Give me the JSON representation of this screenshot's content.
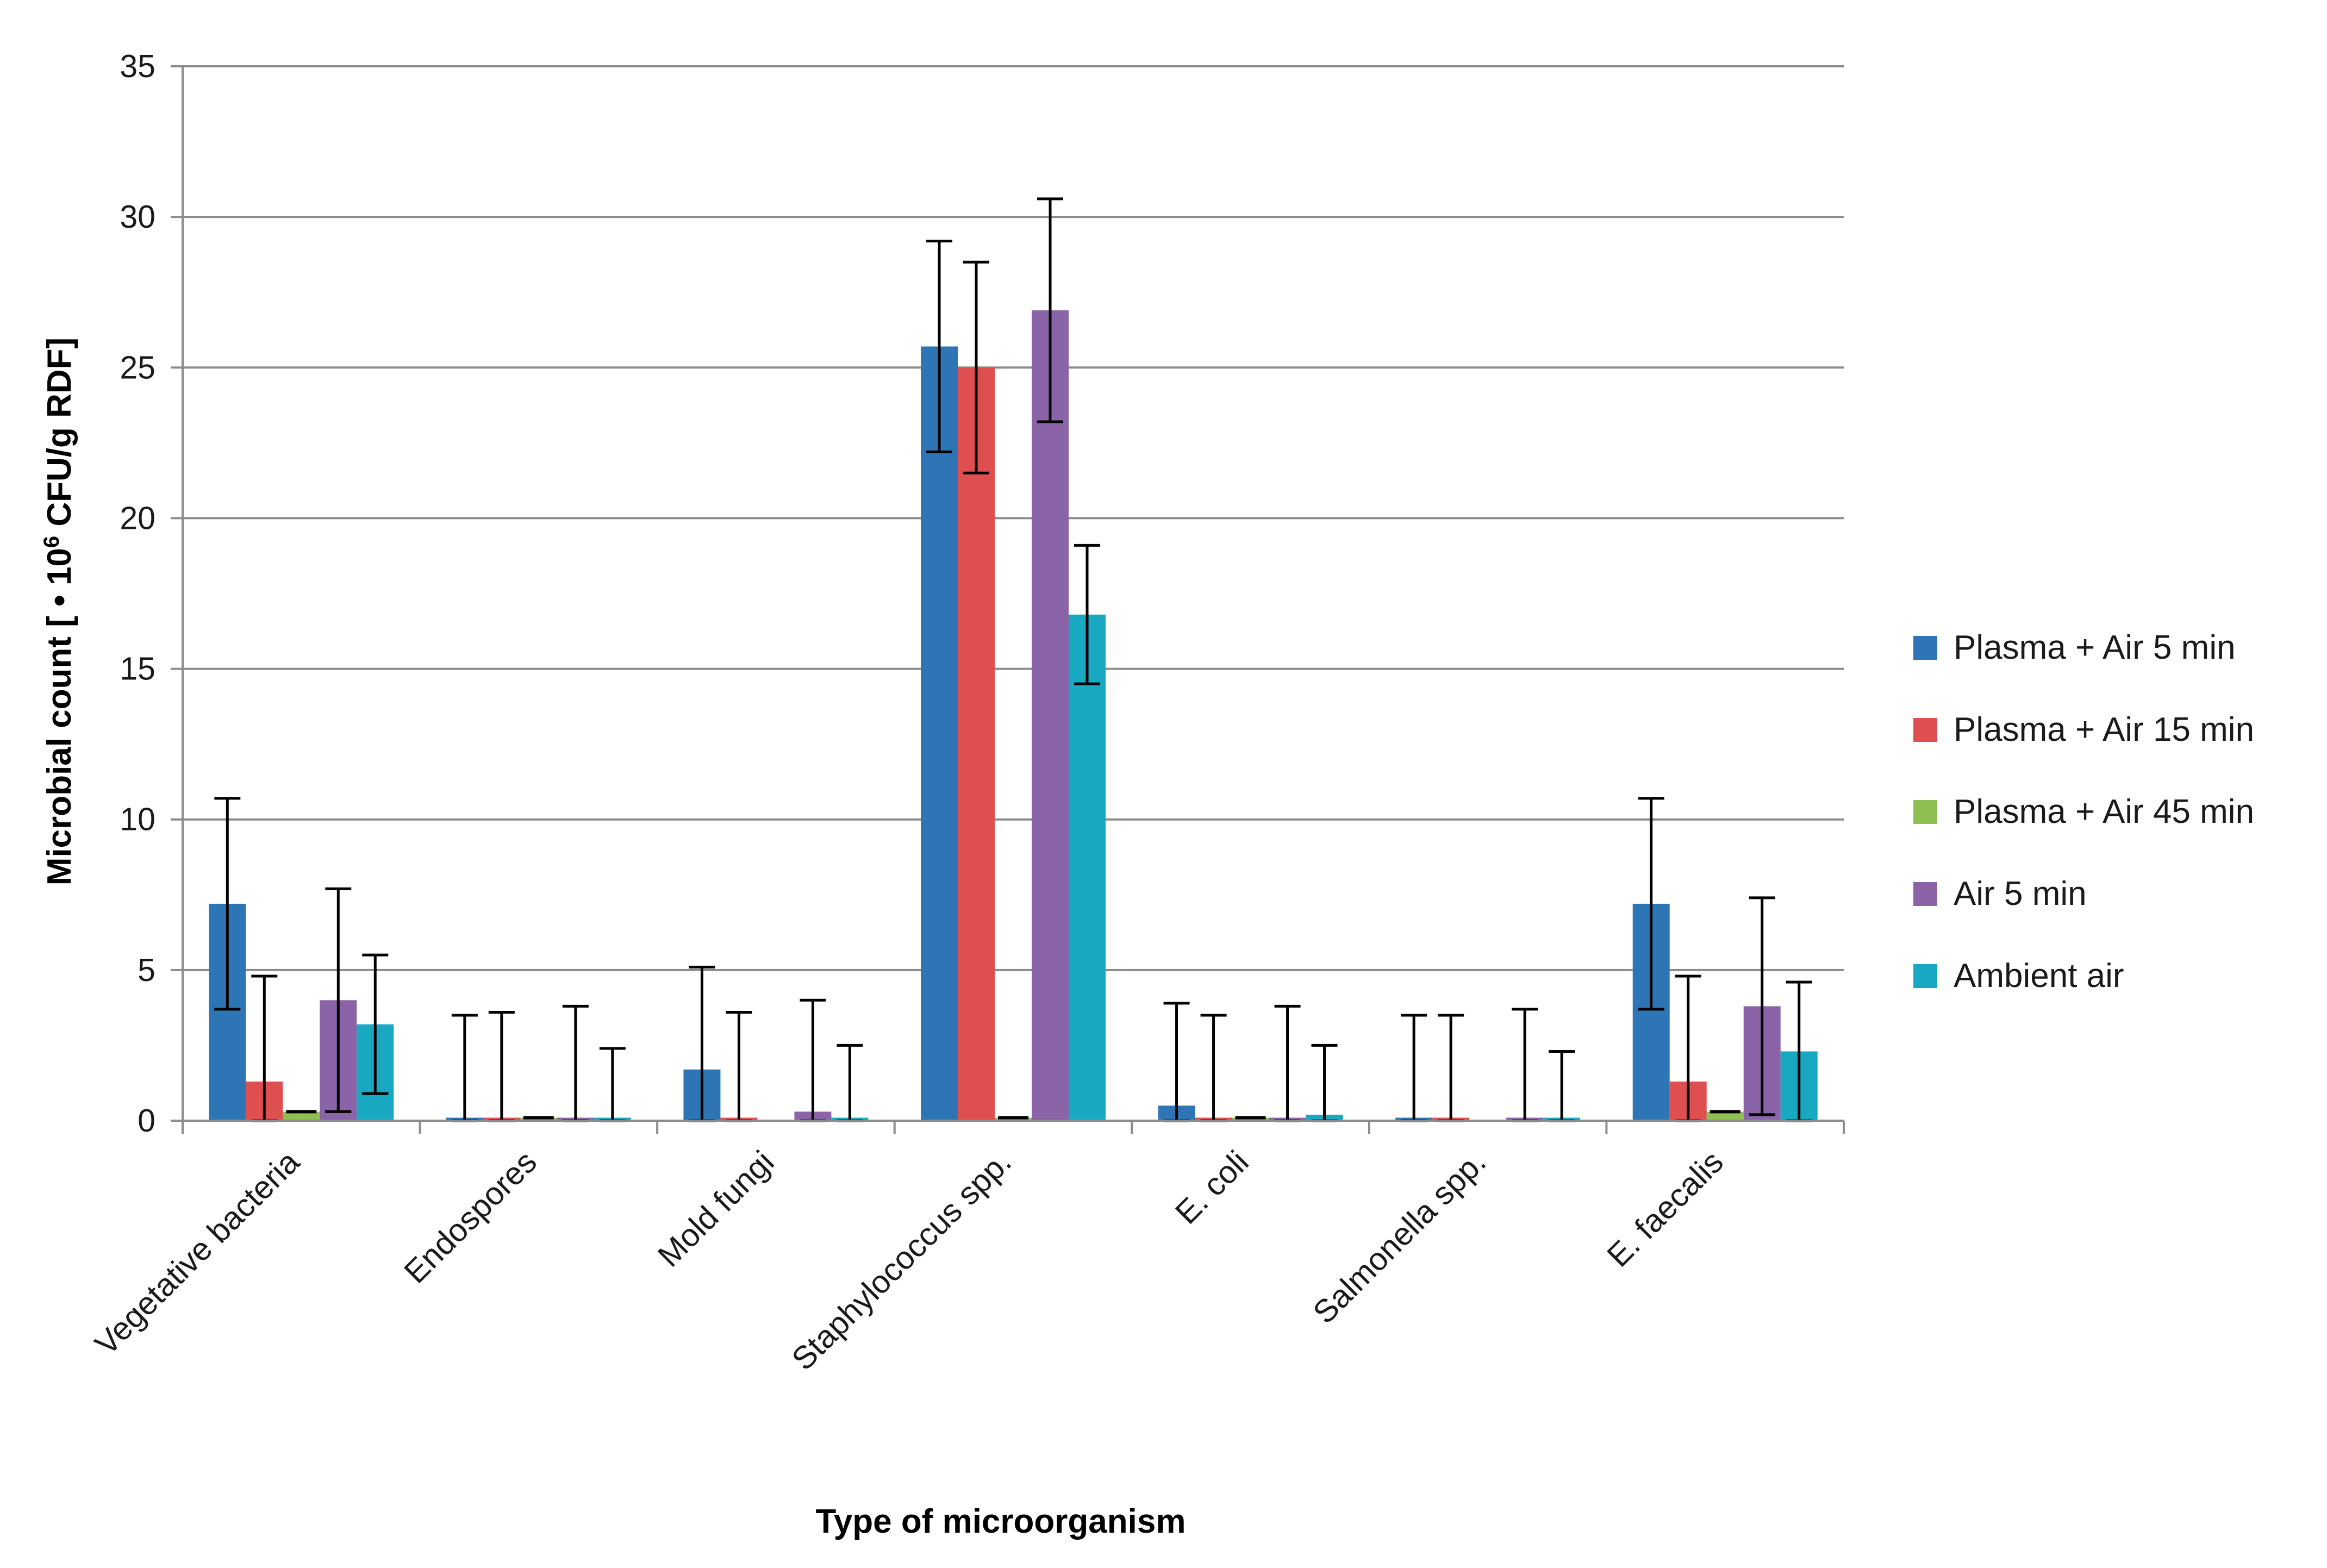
{
  "chart_data": {
    "type": "bar",
    "title": "",
    "xlabel": "Type of microorganism",
    "ylabel": {
      "prefix": "Microbial count [ • 10",
      "superscript": "6",
      "suffix": " CFU/g RDF]"
    },
    "ylim": [
      0,
      35
    ],
    "yticks": [
      0,
      5,
      10,
      15,
      20,
      25,
      30,
      35
    ],
    "grid": true,
    "legend_position": "right",
    "categories": [
      "Vegetative bacteria",
      "Endospores",
      "Mold fungi",
      "Staphylococcus spp.",
      "E. coli",
      "Salmonella spp.",
      "E. faecalis"
    ],
    "series": [
      {
        "name": "Plasma + Air 5 min",
        "color": "#2E75B6",
        "values": [
          7.2,
          0.1,
          1.7,
          25.7,
          0.5,
          0.1,
          7.2
        ],
        "errors": [
          3.5,
          3.4,
          3.4,
          3.5,
          3.4,
          3.4,
          3.5
        ]
      },
      {
        "name": "Plasma + Air 15 min",
        "color": "#E04F4F",
        "values": [
          1.3,
          0.1,
          0.1,
          25.0,
          0.1,
          0.1,
          1.3
        ],
        "errors": [
          3.5,
          3.5,
          3.5,
          3.5,
          3.4,
          3.4,
          3.5
        ]
      },
      {
        "name": "Plasma + Air 45 min",
        "color": "#8DC050",
        "values": [
          0.3,
          0.1,
          0.0,
          0.1,
          0.1,
          0.0,
          0.3
        ],
        "errors": [
          0.0,
          0.0,
          0.0,
          0.0,
          0.0,
          0.0,
          0.0
        ]
      },
      {
        "name": "Air 5 min",
        "color": "#8B64A7",
        "values": [
          4.0,
          0.1,
          0.3,
          26.9,
          0.1,
          0.1,
          3.8
        ],
        "errors": [
          3.7,
          3.7,
          3.7,
          3.7,
          3.7,
          3.6,
          3.6
        ]
      },
      {
        "name": "Ambient air",
        "color": "#19A8C2",
        "values": [
          3.2,
          0.1,
          0.1,
          16.8,
          0.2,
          0.1,
          2.3
        ],
        "errors": [
          2.3,
          2.3,
          2.4,
          2.3,
          2.3,
          2.2,
          2.3
        ]
      }
    ]
  },
  "colors": {
    "gridline": "#8C8C8C",
    "axis": "#8C8C8C",
    "error_bar": "#000000"
  }
}
